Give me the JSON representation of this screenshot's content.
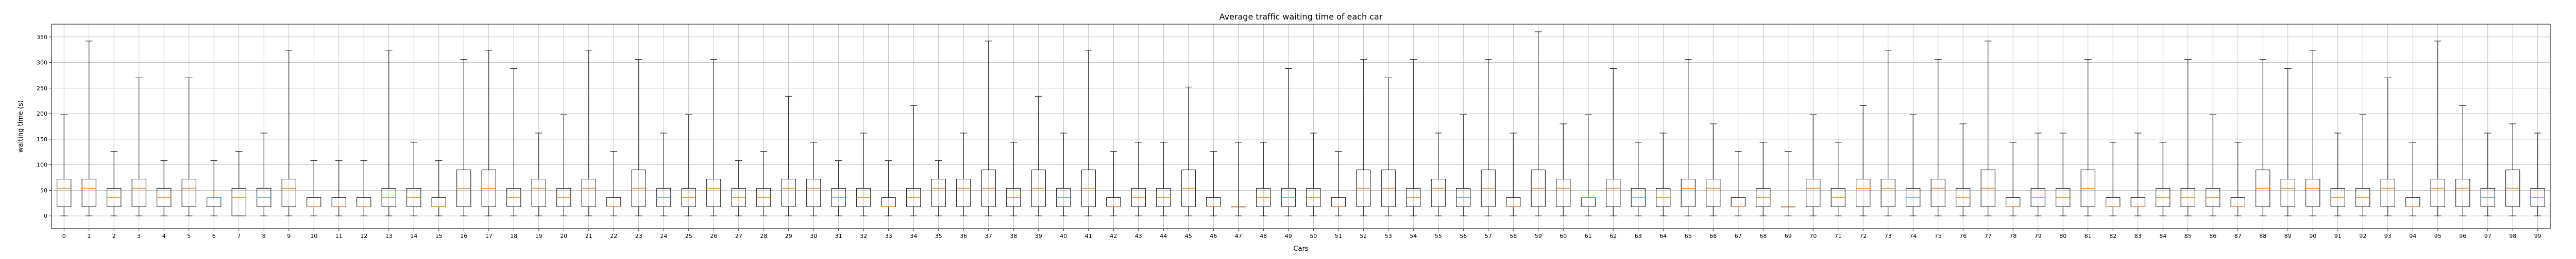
{
  "chart_data": {
    "type": "boxplot",
    "title": "Average traffic waiting time of each car",
    "xlabel": "Cars",
    "ylabel": "waiting time (s)",
    "ylim": [
      -25,
      375
    ],
    "yticks": [
      0,
      50,
      100,
      150,
      200,
      250,
      300,
      350
    ],
    "grid": true,
    "colors": {
      "box": "#000000",
      "median": "#ff7f0e",
      "grid": "#b0b0b0"
    },
    "categories": [
      "0",
      "1",
      "2",
      "3",
      "4",
      "5",
      "6",
      "7",
      "8",
      "9",
      "10",
      "11",
      "12",
      "13",
      "14",
      "15",
      "16",
      "17",
      "18",
      "19",
      "20",
      "21",
      "22",
      "23",
      "24",
      "25",
      "26",
      "27",
      "28",
      "29",
      "30",
      "31",
      "32",
      "33",
      "34",
      "35",
      "36",
      "37",
      "38",
      "39",
      "40",
      "41",
      "42",
      "43",
      "44",
      "45",
      "46",
      "47",
      "48",
      "49",
      "50",
      "51",
      "52",
      "53",
      "54",
      "55",
      "56",
      "57",
      "58",
      "59",
      "60",
      "61",
      "62",
      "63",
      "64",
      "65",
      "66",
      "67",
      "68",
      "69",
      "70",
      "71",
      "72",
      "73",
      "74",
      "75",
      "76",
      "77",
      "78",
      "79",
      "80",
      "81",
      "82",
      "83",
      "84",
      "85",
      "86",
      "87",
      "88",
      "89",
      "90",
      "91",
      "92",
      "93",
      "94",
      "95",
      "96",
      "97",
      "98",
      "99"
    ],
    "boxes": [
      {
        "whislo": 0,
        "q1": 18,
        "med": 54,
        "q3": 72,
        "whishi": 198
      },
      {
        "whislo": 0,
        "q1": 18,
        "med": 54,
        "q3": 72,
        "whishi": 342
      },
      {
        "whislo": 0,
        "q1": 18,
        "med": 36,
        "q3": 54,
        "whishi": 126
      },
      {
        "whislo": 0,
        "q1": 18,
        "med": 54,
        "q3": 72,
        "whishi": 270
      },
      {
        "whislo": 0,
        "q1": 18,
        "med": 36,
        "q3": 54,
        "whishi": 108
      },
      {
        "whislo": 0,
        "q1": 18,
        "med": 54,
        "q3": 72,
        "whishi": 270
      },
      {
        "whislo": 0,
        "q1": 18,
        "med": 36,
        "q3": 36,
        "whishi": 108
      },
      {
        "whislo": 0,
        "q1": 0,
        "med": 36,
        "q3": 54,
        "whishi": 126
      },
      {
        "whislo": 0,
        "q1": 18,
        "med": 36,
        "q3": 54,
        "whishi": 162
      },
      {
        "whislo": 0,
        "q1": 18,
        "med": 54,
        "q3": 72,
        "whishi": 324
      },
      {
        "whislo": 0,
        "q1": 18,
        "med": 18,
        "q3": 36,
        "whishi": 108
      },
      {
        "whislo": 0,
        "q1": 18,
        "med": 18,
        "q3": 36,
        "whishi": 108
      },
      {
        "whislo": 0,
        "q1": 18,
        "med": 18,
        "q3": 36,
        "whishi": 108
      },
      {
        "whislo": 0,
        "q1": 18,
        "med": 36,
        "q3": 54,
        "whishi": 324
      },
      {
        "whislo": 0,
        "q1": 18,
        "med": 36,
        "q3": 54,
        "whishi": 144
      },
      {
        "whislo": 0,
        "q1": 18,
        "med": 18,
        "q3": 36,
        "whishi": 108
      },
      {
        "whislo": 0,
        "q1": 18,
        "med": 54,
        "q3": 90,
        "whishi": 306
      },
      {
        "whislo": 0,
        "q1": 18,
        "med": 54,
        "q3": 90,
        "whishi": 324
      },
      {
        "whislo": 0,
        "q1": 18,
        "med": 36,
        "q3": 54,
        "whishi": 288
      },
      {
        "whislo": 0,
        "q1": 18,
        "med": 54,
        "q3": 72,
        "whishi": 162
      },
      {
        "whislo": 0,
        "q1": 18,
        "med": 36,
        "q3": 54,
        "whishi": 198
      },
      {
        "whislo": 0,
        "q1": 18,
        "med": 54,
        "q3": 72,
        "whishi": 324
      },
      {
        "whislo": 0,
        "q1": 18,
        "med": 18,
        "q3": 36,
        "whishi": 126
      },
      {
        "whislo": 0,
        "q1": 18,
        "med": 54,
        "q3": 90,
        "whishi": 306
      },
      {
        "whislo": 0,
        "q1": 18,
        "med": 36,
        "q3": 54,
        "whishi": 162
      },
      {
        "whislo": 0,
        "q1": 18,
        "med": 36,
        "q3": 54,
        "whishi": 198
      },
      {
        "whislo": 0,
        "q1": 18,
        "med": 54,
        "q3": 72,
        "whishi": 306
      },
      {
        "whislo": 0,
        "q1": 18,
        "med": 36,
        "q3": 54,
        "whishi": 108
      },
      {
        "whislo": 0,
        "q1": 18,
        "med": 36,
        "q3": 54,
        "whishi": 126
      },
      {
        "whislo": 0,
        "q1": 18,
        "med": 54,
        "q3": 72,
        "whishi": 234
      },
      {
        "whislo": 0,
        "q1": 18,
        "med": 54,
        "q3": 72,
        "whishi": 144
      },
      {
        "whislo": 0,
        "q1": 18,
        "med": 36,
        "q3": 54,
        "whishi": 108
      },
      {
        "whislo": 0,
        "q1": 18,
        "med": 36,
        "q3": 54,
        "whishi": 162
      },
      {
        "whislo": 0,
        "q1": 18,
        "med": 18,
        "q3": 36,
        "whishi": 108
      },
      {
        "whislo": 0,
        "q1": 18,
        "med": 36,
        "q3": 54,
        "whishi": 216
      },
      {
        "whislo": 0,
        "q1": 18,
        "med": 54,
        "q3": 72,
        "whishi": 108
      },
      {
        "whislo": 0,
        "q1": 18,
        "med": 54,
        "q3": 72,
        "whishi": 162
      },
      {
        "whislo": 0,
        "q1": 18,
        "med": 54,
        "q3": 90,
        "whishi": 342
      },
      {
        "whislo": 0,
        "q1": 18,
        "med": 36,
        "q3": 54,
        "whishi": 144
      },
      {
        "whislo": 0,
        "q1": 18,
        "med": 54,
        "q3": 90,
        "whishi": 234
      },
      {
        "whislo": 0,
        "q1": 18,
        "med": 36,
        "q3": 54,
        "whishi": 162
      },
      {
        "whislo": 0,
        "q1": 18,
        "med": 54,
        "q3": 90,
        "whishi": 324
      },
      {
        "whislo": 0,
        "q1": 18,
        "med": 18,
        "q3": 36,
        "whishi": 126
      },
      {
        "whislo": 0,
        "q1": 18,
        "med": 36,
        "q3": 54,
        "whishi": 144
      },
      {
        "whislo": 0,
        "q1": 18,
        "med": 36,
        "q3": 54,
        "whishi": 144
      },
      {
        "whislo": 0,
        "q1": 18,
        "med": 54,
        "q3": 90,
        "whishi": 252
      },
      {
        "whislo": 0,
        "q1": 18,
        "med": 18,
        "q3": 36,
        "whishi": 126
      },
      {
        "whislo": 0,
        "q1": 18,
        "med": 18,
        "q3": 18,
        "whishi": 144
      },
      {
        "whislo": 0,
        "q1": 18,
        "med": 36,
        "q3": 54,
        "whishi": 144
      },
      {
        "whislo": 0,
        "q1": 18,
        "med": 36,
        "q3": 54,
        "whishi": 288
      },
      {
        "whislo": 0,
        "q1": 18,
        "med": 36,
        "q3": 54,
        "whishi": 162
      },
      {
        "whislo": 0,
        "q1": 18,
        "med": 18,
        "q3": 36,
        "whishi": 126
      },
      {
        "whislo": 0,
        "q1": 18,
        "med": 54,
        "q3": 90,
        "whishi": 306
      },
      {
        "whislo": 0,
        "q1": 18,
        "med": 54,
        "q3": 90,
        "whishi": 270
      },
      {
        "whislo": 0,
        "q1": 18,
        "med": 36,
        "q3": 54,
        "whishi": 306
      },
      {
        "whislo": 0,
        "q1": 18,
        "med": 54,
        "q3": 72,
        "whishi": 162
      },
      {
        "whislo": 0,
        "q1": 18,
        "med": 36,
        "q3": 54,
        "whishi": 198
      },
      {
        "whislo": 0,
        "q1": 18,
        "med": 54,
        "q3": 90,
        "whishi": 306
      },
      {
        "whislo": 0,
        "q1": 18,
        "med": 18,
        "q3": 36,
        "whishi": 162
      },
      {
        "whislo": 0,
        "q1": 18,
        "med": 54,
        "q3": 90,
        "whishi": 360
      },
      {
        "whislo": 0,
        "q1": 18,
        "med": 54,
        "q3": 72,
        "whishi": 180
      },
      {
        "whislo": 0,
        "q1": 18,
        "med": 36,
        "q3": 36,
        "whishi": 198
      },
      {
        "whislo": 0,
        "q1": 18,
        "med": 54,
        "q3": 72,
        "whishi": 288
      },
      {
        "whislo": 0,
        "q1": 18,
        "med": 36,
        "q3": 54,
        "whishi": 144
      },
      {
        "whislo": 0,
        "q1": 18,
        "med": 36,
        "q3": 54,
        "whishi": 162
      },
      {
        "whislo": 0,
        "q1": 18,
        "med": 54,
        "q3": 72,
        "whishi": 306
      },
      {
        "whislo": 0,
        "q1": 18,
        "med": 54,
        "q3": 72,
        "whishi": 180
      },
      {
        "whislo": 0,
        "q1": 18,
        "med": 18,
        "q3": 36,
        "whishi": 126
      },
      {
        "whislo": 0,
        "q1": 18,
        "med": 36,
        "q3": 54,
        "whishi": 144
      },
      {
        "whislo": 0,
        "q1": 18,
        "med": 18,
        "q3": 18,
        "whishi": 126
      },
      {
        "whislo": 0,
        "q1": 18,
        "med": 54,
        "q3": 72,
        "whishi": 198
      },
      {
        "whislo": 0,
        "q1": 18,
        "med": 36,
        "q3": 54,
        "whishi": 144
      },
      {
        "whislo": 0,
        "q1": 18,
        "med": 54,
        "q3": 72,
        "whishi": 216
      },
      {
        "whislo": 0,
        "q1": 18,
        "med": 54,
        "q3": 72,
        "whishi": 324
      },
      {
        "whislo": 0,
        "q1": 18,
        "med": 36,
        "q3": 54,
        "whishi": 198
      },
      {
        "whislo": 0,
        "q1": 18,
        "med": 54,
        "q3": 72,
        "whishi": 306
      },
      {
        "whislo": 0,
        "q1": 18,
        "med": 36,
        "q3": 54,
        "whishi": 180
      },
      {
        "whislo": 0,
        "q1": 18,
        "med": 54,
        "q3": 90,
        "whishi": 342
      },
      {
        "whislo": 0,
        "q1": 18,
        "med": 18,
        "q3": 36,
        "whishi": 144
      },
      {
        "whislo": 0,
        "q1": 18,
        "med": 36,
        "q3": 54,
        "whishi": 162
      },
      {
        "whislo": 0,
        "q1": 18,
        "med": 36,
        "q3": 54,
        "whishi": 162
      },
      {
        "whislo": 0,
        "q1": 18,
        "med": 54,
        "q3": 90,
        "whishi": 306
      },
      {
        "whislo": 0,
        "q1": 18,
        "med": 18,
        "q3": 36,
        "whishi": 144
      },
      {
        "whislo": 0,
        "q1": 18,
        "med": 18,
        "q3": 36,
        "whishi": 162
      },
      {
        "whislo": 0,
        "q1": 18,
        "med": 36,
        "q3": 54,
        "whishi": 144
      },
      {
        "whislo": 0,
        "q1": 18,
        "med": 36,
        "q3": 54,
        "whishi": 306
      },
      {
        "whislo": 0,
        "q1": 18,
        "med": 36,
        "q3": 54,
        "whishi": 198
      },
      {
        "whislo": 0,
        "q1": 18,
        "med": 18,
        "q3": 36,
        "whishi": 144
      },
      {
        "whislo": 0,
        "q1": 18,
        "med": 54,
        "q3": 90,
        "whishi": 306
      },
      {
        "whislo": 0,
        "q1": 18,
        "med": 54,
        "q3": 72,
        "whishi": 288
      },
      {
        "whislo": 0,
        "q1": 18,
        "med": 54,
        "q3": 72,
        "whishi": 324
      },
      {
        "whislo": 0,
        "q1": 18,
        "med": 36,
        "q3": 54,
        "whishi": 162
      },
      {
        "whislo": 0,
        "q1": 18,
        "med": 36,
        "q3": 54,
        "whishi": 198
      },
      {
        "whislo": 0,
        "q1": 18,
        "med": 54,
        "q3": 72,
        "whishi": 270
      },
      {
        "whislo": 0,
        "q1": 18,
        "med": 18,
        "q3": 36,
        "whishi": 144
      },
      {
        "whislo": 0,
        "q1": 18,
        "med": 54,
        "q3": 72,
        "whishi": 342
      },
      {
        "whislo": 0,
        "q1": 18,
        "med": 54,
        "q3": 72,
        "whishi": 216
      },
      {
        "whislo": 0,
        "q1": 18,
        "med": 36,
        "q3": 54,
        "whishi": 162
      },
      {
        "whislo": 0,
        "q1": 18,
        "med": 54,
        "q3": 90,
        "whishi": 180
      },
      {
        "whislo": 0,
        "q1": 18,
        "med": 36,
        "q3": 54,
        "whishi": 162
      }
    ]
  }
}
